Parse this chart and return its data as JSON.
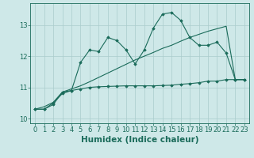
{
  "xlabel": "Humidex (Indice chaleur)",
  "background_color": "#cee8e8",
  "grid_color": "#aacccc",
  "line_color": "#1a6b5a",
  "x_values": [
    0,
    1,
    2,
    3,
    4,
    5,
    6,
    7,
    8,
    9,
    10,
    11,
    12,
    13,
    14,
    15,
    16,
    17,
    18,
    19,
    20,
    21,
    22,
    23
  ],
  "line1_y": [
    10.3,
    10.3,
    10.5,
    10.8,
    10.9,
    11.8,
    12.2,
    12.15,
    12.6,
    12.5,
    12.2,
    11.75,
    12.2,
    12.9,
    13.35,
    13.4,
    13.15,
    12.6,
    12.35,
    12.35,
    12.45,
    12.1,
    11.25,
    11.25
  ],
  "line2_y": [
    10.3,
    10.3,
    10.45,
    10.85,
    10.9,
    10.95,
    11.0,
    11.02,
    11.03,
    11.04,
    11.05,
    11.05,
    11.05,
    11.05,
    11.06,
    11.07,
    11.1,
    11.12,
    11.15,
    11.2,
    11.2,
    11.25,
    11.25,
    11.25
  ],
  "line3_y": [
    10.3,
    10.38,
    10.52,
    10.85,
    10.95,
    11.05,
    11.18,
    11.32,
    11.46,
    11.6,
    11.74,
    11.88,
    12.0,
    12.12,
    12.25,
    12.35,
    12.48,
    12.6,
    12.7,
    12.8,
    12.88,
    12.96,
    11.25,
    11.25
  ],
  "ylim": [
    9.85,
    13.7
  ],
  "xlim": [
    -0.5,
    23.5
  ],
  "yticks": [
    10,
    11,
    12,
    13
  ],
  "xticks": [
    0,
    1,
    2,
    3,
    4,
    5,
    6,
    7,
    8,
    9,
    10,
    11,
    12,
    13,
    14,
    15,
    16,
    17,
    18,
    19,
    20,
    21,
    22,
    23
  ],
  "marker": "D",
  "marker_size": 1.8,
  "line_width": 0.8,
  "tick_fontsize": 6,
  "xlabel_fontsize": 7.5
}
